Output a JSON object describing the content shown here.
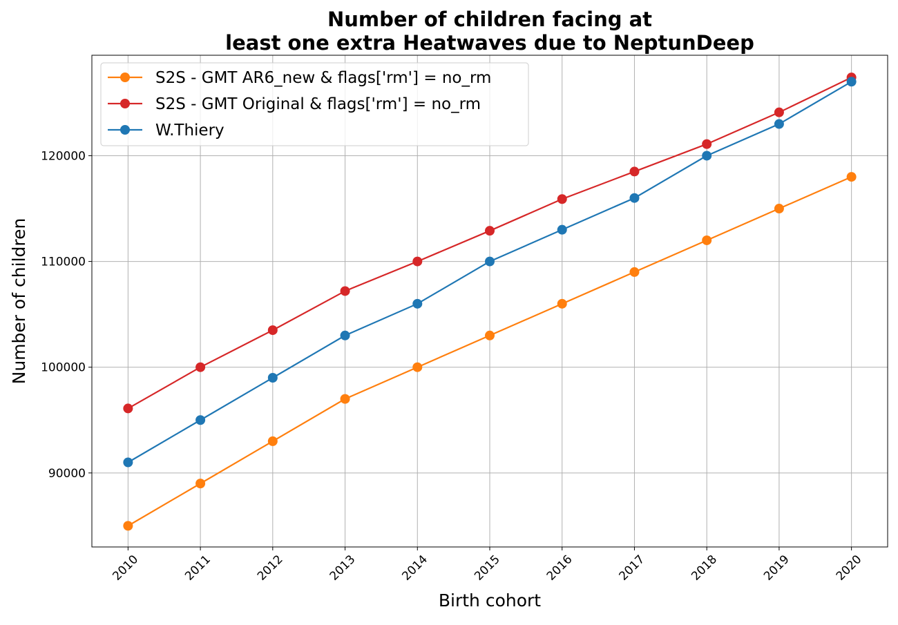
{
  "chart_data": {
    "type": "line",
    "title_lines": [
      "Number of children facing at",
      "least one extra Heatwaves due to NeptunDeep"
    ],
    "xlabel": "Birth cohort",
    "ylabel": "Number of children",
    "x": [
      2010,
      2011,
      2012,
      2013,
      2014,
      2015,
      2016,
      2017,
      2018,
      2019,
      2020
    ],
    "x_tick_labels": [
      "2010",
      "2011",
      "2012",
      "2013",
      "2014",
      "2015",
      "2016",
      "2017",
      "2018",
      "2019",
      "2020"
    ],
    "x_range": [
      2009.5,
      2020.5
    ],
    "y_ticks": [
      90000,
      100000,
      110000,
      120000
    ],
    "y_tick_labels": [
      "90000",
      "100000",
      "110000",
      "120000"
    ],
    "ylim": [
      83000,
      129500
    ],
    "grid": true,
    "legend_position": "upper-left",
    "series": [
      {
        "name": "S2S - GMT AR6_new & flags['rm'] = no_rm",
        "color": "#ff7f0e",
        "values": [
          85000,
          89000,
          93000,
          97000,
          100000,
          103000,
          106000,
          109000,
          112000,
          115000,
          118000
        ]
      },
      {
        "name": "S2S - GMT Original & flags['rm'] = no_rm",
        "color": "#d62728",
        "values": [
          96100,
          100000,
          103500,
          107200,
          110000,
          112900,
          115900,
          118500,
          121100,
          124100,
          127400
        ]
      },
      {
        "name": "W.Thiery",
        "color": "#1f77b4",
        "values": [
          91000,
          95000,
          99000,
          103000,
          106000,
          110000,
          113000,
          116000,
          120000,
          123000,
          127000
        ]
      }
    ]
  }
}
